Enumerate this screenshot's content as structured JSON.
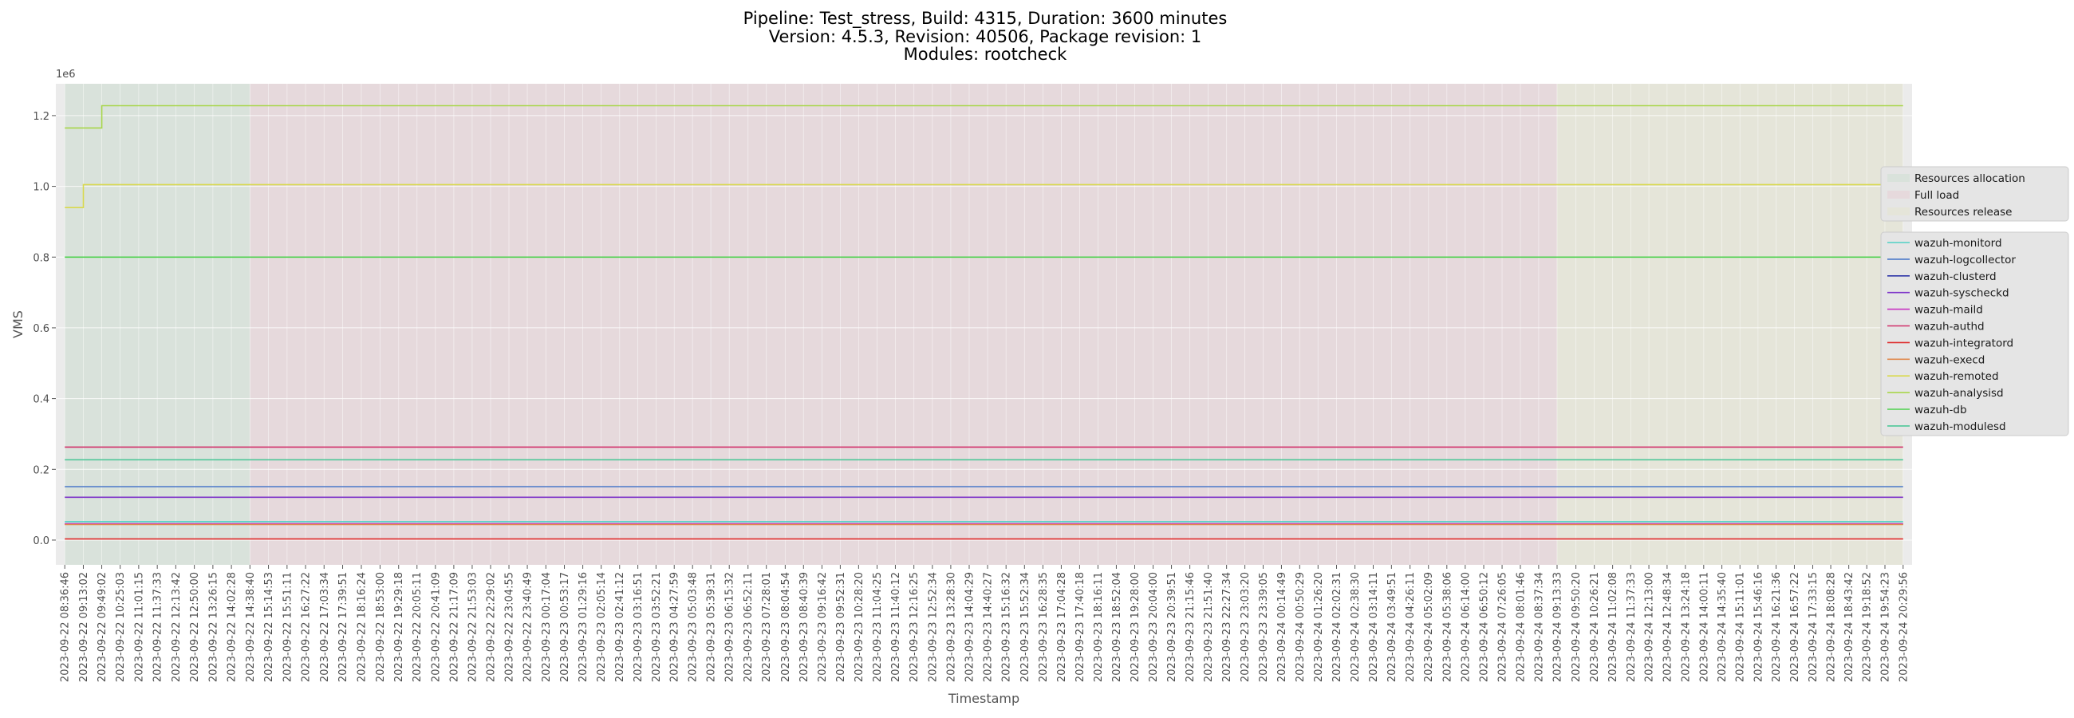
{
  "chart_data": {
    "type": "line",
    "title_lines": [
      "Pipeline: Test_stress, Build: 4315, Duration: 3600 minutes",
      "Version: 4.5.3, Revision: 40506, Package revision: 1",
      "Modules: rootcheck"
    ],
    "xlabel": "Timestamp",
    "ylabel": "VMS",
    "y_offset_label": "1e6",
    "ylim": [
      -0.07,
      1.29
    ],
    "y_scale": 1000000,
    "yticks": [
      "0.0",
      "0.2",
      "0.4",
      "0.6",
      "0.8",
      "1.0",
      "1.2"
    ],
    "grid": true,
    "x_start": "2023-09-22 08:36:46",
    "x_step_seconds": 2097,
    "x_ticks": [
      "2023-09-22 08:36:46",
      "2023-09-22 09:13:02",
      "2023-09-22 09:49:02",
      "2023-09-22 10:25:03",
      "2023-09-22 11:01:15",
      "2023-09-22 11:37:33",
      "2023-09-22 12:13:42",
      "2023-09-22 12:50:00",
      "2023-09-22 13:26:15",
      "2023-09-22 14:02:28",
      "2023-09-22 14:38:40",
      "2023-09-22 15:14:53",
      "2023-09-22 15:51:11",
      "2023-09-22 16:27:22",
      "2023-09-22 17:03:34",
      "2023-09-22 17:39:51",
      "2023-09-22 18:16:24",
      "2023-09-22 18:53:00",
      "2023-09-22 19:29:18",
      "2023-09-22 20:05:11",
      "2023-09-22 20:41:09",
      "2023-09-22 21:17:09",
      "2023-09-22 21:53:03",
      "2023-09-22 22:29:02",
      "2023-09-22 23:04:55",
      "2023-09-22 23:40:49",
      "2023-09-23 00:17:04",
      "2023-09-23 00:53:17",
      "2023-09-23 01:29:16",
      "2023-09-23 02:05:14",
      "2023-09-23 02:41:12",
      "2023-09-23 03:16:51",
      "2023-09-23 03:52:21",
      "2023-09-23 04:27:59",
      "2023-09-23 05:03:48",
      "2023-09-23 05:39:31",
      "2023-09-23 06:15:32",
      "2023-09-23 06:52:11",
      "2023-09-23 07:28:01",
      "2023-09-23 08:04:54",
      "2023-09-23 08:40:39",
      "2023-09-23 09:16:42",
      "2023-09-23 09:52:31",
      "2023-09-23 10:28:20",
      "2023-09-23 11:04:25",
      "2023-09-23 11:40:12",
      "2023-09-23 12:16:25",
      "2023-09-23 12:52:34",
      "2023-09-23 13:28:30",
      "2023-09-23 14:04:29",
      "2023-09-23 14:40:27",
      "2023-09-23 15:16:32",
      "2023-09-23 15:52:34",
      "2023-09-23 16:28:35",
      "2023-09-23 17:04:28",
      "2023-09-23 17:40:18",
      "2023-09-23 18:16:11",
      "2023-09-23 18:52:04",
      "2023-09-23 19:28:00",
      "2023-09-23 20:04:00",
      "2023-09-23 20:39:51",
      "2023-09-23 21:15:46",
      "2023-09-23 21:51:40",
      "2023-09-23 22:27:34",
      "2023-09-23 23:03:20",
      "2023-09-23 23:39:05",
      "2023-09-24 00:14:49",
      "2023-09-24 00:50:29",
      "2023-09-24 01:26:20",
      "2023-09-24 02:02:31",
      "2023-09-24 02:38:30",
      "2023-09-24 03:14:11",
      "2023-09-24 03:49:51",
      "2023-09-24 04:26:11",
      "2023-09-24 05:02:09",
      "2023-09-24 05:38:06",
      "2023-09-24 06:14:00",
      "2023-09-24 06:50:12",
      "2023-09-24 07:26:05",
      "2023-09-24 08:01:46",
      "2023-09-24 08:37:34",
      "2023-09-24 09:13:33",
      "2023-09-24 09:50:20",
      "2023-09-24 10:26:21",
      "2023-09-24 11:02:08",
      "2023-09-24 11:37:33",
      "2023-09-24 12:13:00",
      "2023-09-24 12:48:34",
      "2023-09-24 13:24:18",
      "2023-09-24 14:00:11",
      "2023-09-24 14:35:40",
      "2023-09-24 15:11:01",
      "2023-09-24 15:46:16",
      "2023-09-24 16:21:36",
      "2023-09-24 16:57:22",
      "2023-09-24 17:33:15",
      "2023-09-24 18:08:28",
      "2023-09-24 18:43:42",
      "2023-09-24 19:18:52",
      "2023-09-24 19:54:23",
      "2023-09-24 20:29:56"
    ],
    "phases": [
      {
        "name": "Resources allocation",
        "start": "2023-09-22 08:36:46",
        "end": "2023-09-22 14:38:40",
        "color": "#d9e2db"
      },
      {
        "name": "Full load",
        "start": "2023-09-22 14:38:40",
        "end": "2023-09-24 09:13:33",
        "color": "#e6d9dc"
      },
      {
        "name": "Resources release",
        "start": "2023-09-24 09:13:33",
        "end": "2023-09-24 20:29:56",
        "color": "#e5e5d9"
      }
    ],
    "series": [
      {
        "name": "wazuh-monitord",
        "color": "#4fd1c5",
        "points": [
          [
            "2023-09-22 08:36:46",
            0.052
          ],
          [
            "2023-09-24 20:29:56",
            0.052
          ]
        ]
      },
      {
        "name": "wazuh-logcollector",
        "color": "#4a78c9",
        "points": [
          [
            "2023-09-22 08:36:46",
            0.151
          ],
          [
            "2023-09-24 20:29:56",
            0.151
          ]
        ]
      },
      {
        "name": "wazuh-clusterd",
        "color": "#2e35a8",
        "points": [
          [
            "2023-09-22 08:36:46",
            0.045
          ],
          [
            "2023-09-24 20:29:56",
            0.045
          ]
        ]
      },
      {
        "name": "wazuh-syscheckd",
        "color": "#7d33c9",
        "points": [
          [
            "2023-09-22 08:36:46",
            0.121
          ],
          [
            "2023-09-24 20:29:56",
            0.121
          ]
        ]
      },
      {
        "name": "wazuh-maild",
        "color": "#c733c2",
        "points": [
          [
            "2023-09-22 08:36:46",
            0.046
          ],
          [
            "2023-09-24 20:29:56",
            0.046
          ]
        ]
      },
      {
        "name": "wazuh-authd",
        "color": "#d12f6a",
        "points": [
          [
            "2023-09-22 08:36:46",
            0.263
          ],
          [
            "2023-09-24 20:29:56",
            0.263
          ]
        ]
      },
      {
        "name": "wazuh-integratord",
        "color": "#de2a2a",
        "points": [
          [
            "2023-09-22 08:36:46",
            0.003
          ],
          [
            "2023-09-24 20:29:56",
            0.003
          ]
        ]
      },
      {
        "name": "wazuh-execd",
        "color": "#e0894d",
        "points": [
          [
            "2023-09-22 08:36:46",
            0.044
          ],
          [
            "2023-09-24 20:29:56",
            0.044
          ]
        ]
      },
      {
        "name": "wazuh-remoted",
        "color": "#d9d94d",
        "points": [
          [
            "2023-09-22 08:36:46",
            0.94
          ],
          [
            "2023-09-22 09:13:02",
            0.94
          ],
          [
            "2023-09-22 09:13:02",
            1.005
          ],
          [
            "2023-09-24 20:29:56",
            1.005
          ]
        ]
      },
      {
        "name": "wazuh-analysisd",
        "color": "#a8d64a",
        "points": [
          [
            "2023-09-22 08:36:46",
            1.165
          ],
          [
            "2023-09-22 09:49:02",
            1.165
          ],
          [
            "2023-09-22 09:49:02",
            1.228
          ],
          [
            "2023-09-24 20:29:56",
            1.228
          ]
        ]
      },
      {
        "name": "wazuh-db",
        "color": "#4fd14f",
        "points": [
          [
            "2023-09-22 08:36:46",
            0.8
          ],
          [
            "2023-09-24 20:29:56",
            0.8
          ]
        ]
      },
      {
        "name": "wazuh-modulesd",
        "color": "#4fc799",
        "points": [
          [
            "2023-09-22 08:36:46",
            0.227
          ],
          [
            "2023-09-24 20:29:56",
            0.227
          ]
        ]
      }
    ]
  },
  "colors": {
    "grid": "#ffffff",
    "axes_bg": "#ebebeb",
    "legend_bg": "#e5e5e5",
    "legend_border": "#cccccc"
  }
}
